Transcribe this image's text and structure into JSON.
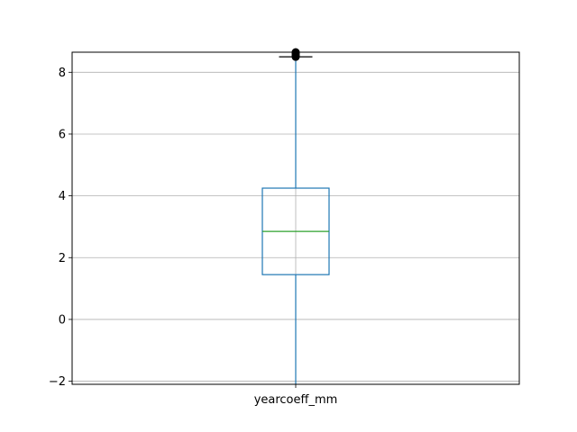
{
  "chart_data": {
    "type": "box",
    "title": "",
    "xlabel": "",
    "ylabel": "",
    "categories": [
      "yearcoeff_mm"
    ],
    "ylim": [
      -2.1,
      8.65
    ],
    "yticks": [
      -2,
      0,
      2,
      4,
      6,
      8
    ],
    "grid": true,
    "boxes": [
      {
        "name": "yearcoeff_mm",
        "whisker_low": -2.1,
        "q1": 1.45,
        "median": 2.85,
        "q3": 4.25,
        "whisker_high": 8.5,
        "outliers": [
          8.5,
          8.55,
          8.6,
          8.65
        ]
      }
    ],
    "colors": {
      "box": "#1f77b4",
      "median": "#2ca02c",
      "whisker": "#1f77b4",
      "cap": "#000000",
      "outlier": "#000000",
      "grid": "#b0b0b0",
      "axes": "#000000"
    }
  }
}
